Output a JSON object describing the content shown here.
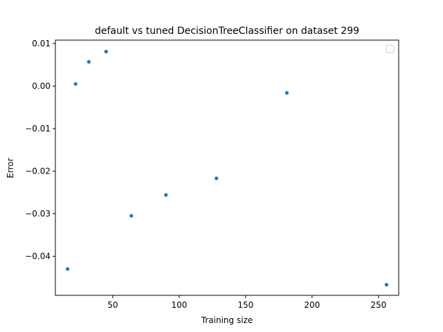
{
  "chart_data": {
    "type": "scatter",
    "title": "default vs tuned DecisionTreeClassifier on dataset 299",
    "xlabel": "Training size",
    "ylabel": "Error",
    "xlim": [
      6.8,
      265.2
    ],
    "ylim": [
      -0.0492,
      0.0108
    ],
    "xticks": [
      50,
      100,
      150,
      200,
      250
    ],
    "yticks": [
      -0.04,
      -0.03,
      -0.02,
      -0.01,
      0.0,
      0.01
    ],
    "xtick_labels": [
      "50",
      "100",
      "150",
      "200",
      "250"
    ],
    "ytick_labels": [
      "−0.04",
      "−0.03",
      "−0.02",
      "−0.01",
      "0.00",
      "0.01"
    ],
    "grid": false,
    "legend": {
      "placement": "top-right",
      "entries": []
    },
    "series": [
      {
        "color": "#1f77b4",
        "x": [
          16,
          22,
          32,
          45,
          64,
          90,
          128,
          181,
          256
        ],
        "y": [
          -0.043,
          0.0005,
          0.0057,
          0.0081,
          -0.0305,
          -0.0256,
          -0.0217,
          -0.0016,
          -0.0467
        ]
      }
    ]
  }
}
